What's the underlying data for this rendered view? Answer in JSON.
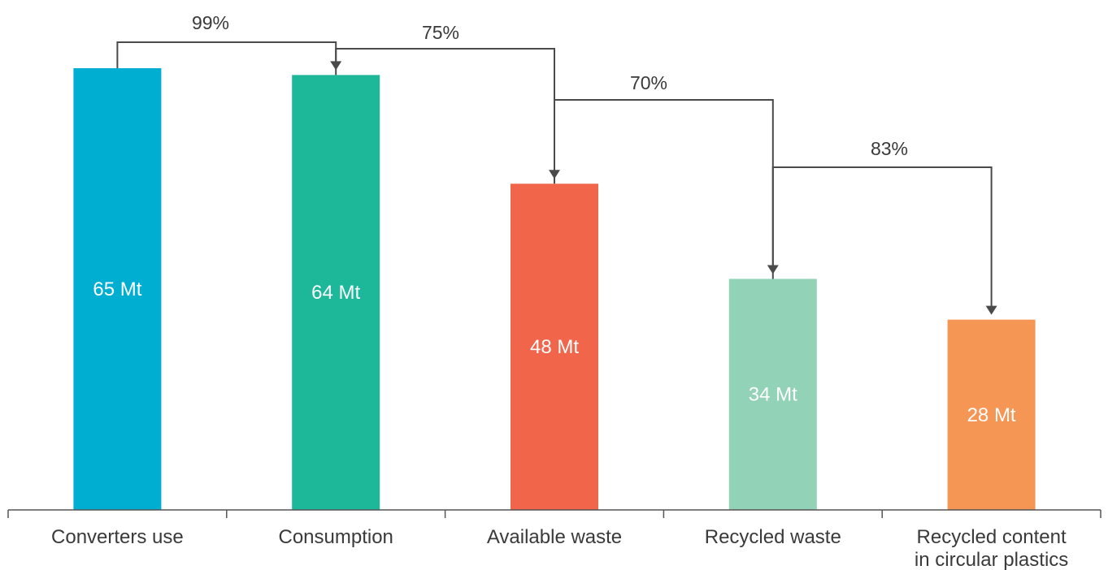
{
  "chart_data": {
    "type": "bar",
    "title": "",
    "xlabel": "",
    "ylabel": "",
    "unit": "Mt",
    "categories": [
      "Converters use",
      "Consumption",
      "Available waste",
      "Recycled waste",
      "Recycled content in circular plastics"
    ],
    "category_lines": [
      [
        "Converters use"
      ],
      [
        "Consumption"
      ],
      [
        "Available waste"
      ],
      [
        "Recycled waste"
      ],
      [
        "Recycled content",
        "in circular plastics"
      ]
    ],
    "values": [
      65,
      64,
      48,
      34,
      28
    ],
    "value_labels": [
      "65 Mt",
      "64 Mt",
      "48 Mt",
      "34 Mt",
      "28 Mt"
    ],
    "colors": [
      "#00AED1",
      "#1DB89A",
      "#F1654A",
      "#92D2B7",
      "#F69655"
    ],
    "ylim": [
      0,
      65
    ],
    "grid": false,
    "legend": "none",
    "transitions": [
      {
        "from": 0,
        "to": 1,
        "label": "99%"
      },
      {
        "from": 1,
        "to": 2,
        "label": "75%"
      },
      {
        "from": 2,
        "to": 3,
        "label": "70%"
      },
      {
        "from": 3,
        "to": 4,
        "label": "83%"
      }
    ]
  }
}
